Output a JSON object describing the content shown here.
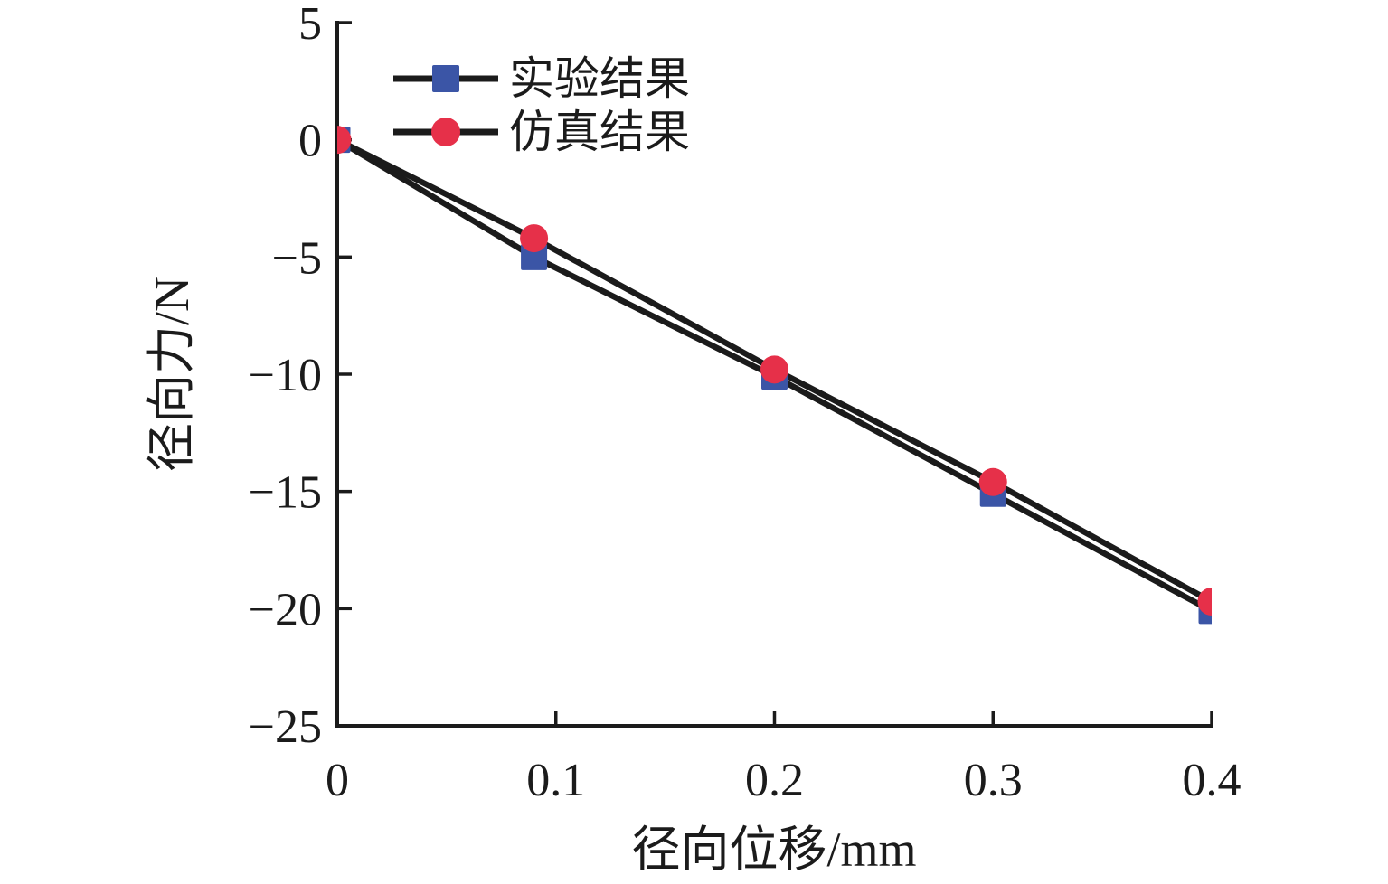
{
  "chart_data": {
    "type": "line",
    "title": "",
    "xlabel": "径向位移/mm",
    "ylabel": "径向力/N",
    "xlim": [
      0,
      0.4
    ],
    "ylim": [
      -25,
      5
    ],
    "xticks": [
      0,
      0.1,
      0.2,
      0.3,
      0.4
    ],
    "xtick_labels": [
      "0",
      "0.1",
      "0.2",
      "0.3",
      "0.4"
    ],
    "yticks": [
      5,
      0,
      -5,
      -10,
      -15,
      -20,
      -25
    ],
    "ytick_labels": [
      "5",
      "0",
      "−5",
      "−10",
      "−15",
      "−20",
      "−25"
    ],
    "grid": false,
    "legend_position": "top-left-inside",
    "line_color": "#1b1b1b",
    "axis_color": "#1b1b1b",
    "series": [
      {
        "name": "实验结果",
        "marker": "square",
        "marker_color": "#3b55a6",
        "x": [
          0,
          0.09,
          0.2,
          0.3,
          0.4
        ],
        "y": [
          0,
          -5.0,
          -10.1,
          -15.1,
          -20.1
        ]
      },
      {
        "name": "仿真结果",
        "marker": "circle",
        "marker_color": "#e63049",
        "x": [
          0,
          0.09,
          0.2,
          0.3,
          0.4
        ],
        "y": [
          0,
          -4.2,
          -9.8,
          -14.6,
          -19.7
        ]
      }
    ]
  }
}
